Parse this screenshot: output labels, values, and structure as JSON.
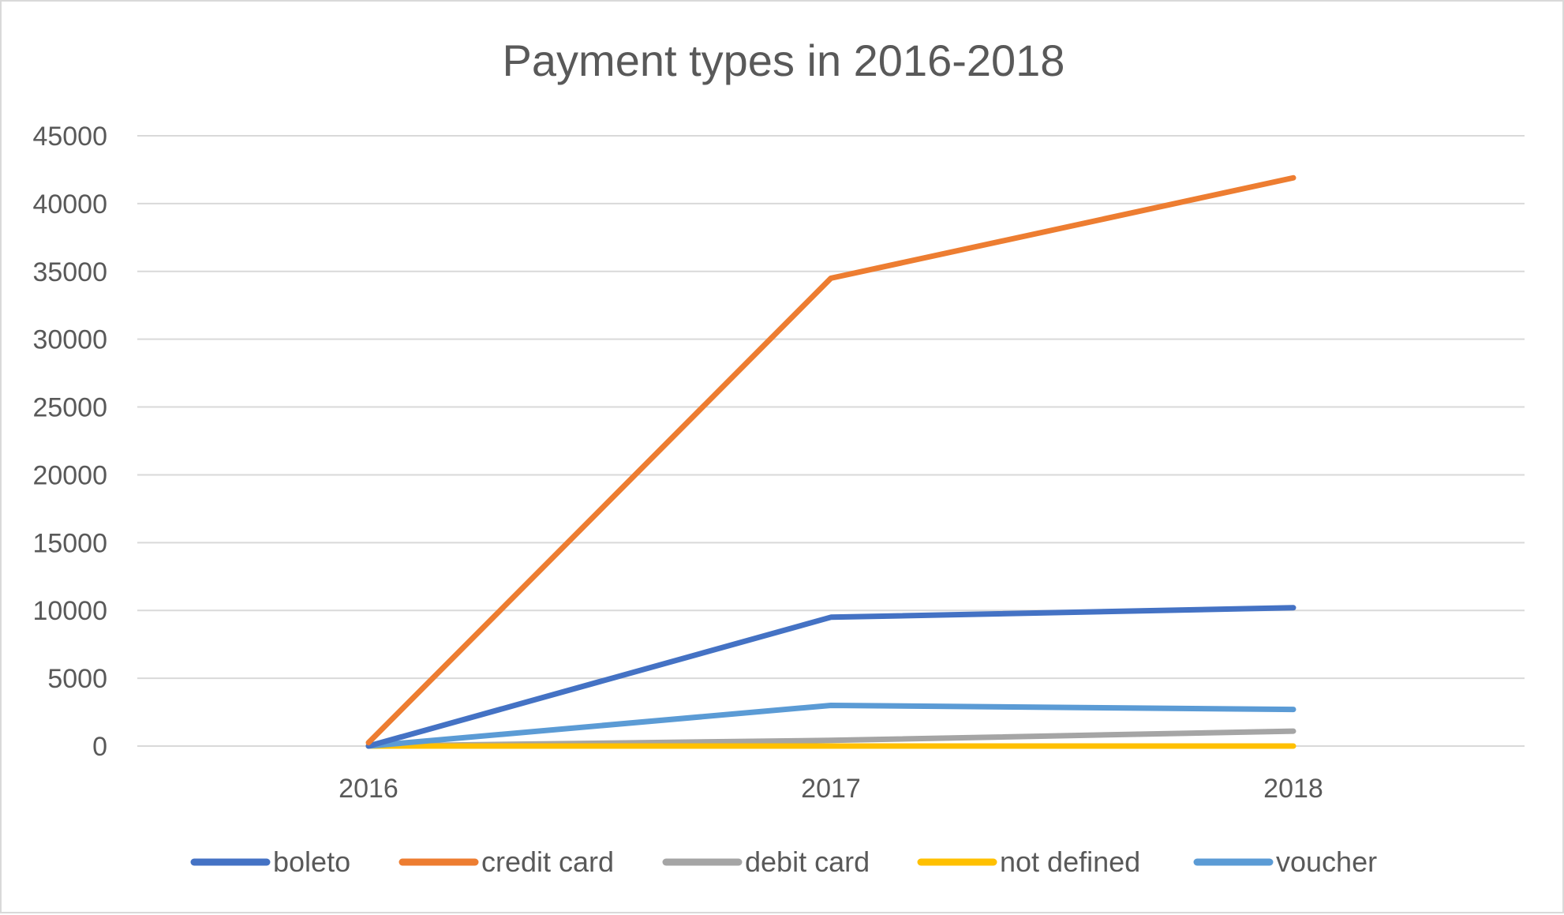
{
  "chart_data": {
    "type": "line",
    "title": "Payment types in 2016-2018",
    "xlabel": "",
    "ylabel": "",
    "categories": [
      "2016",
      "2017",
      "2018"
    ],
    "y_ticks": [
      "0",
      "5000",
      "10000",
      "15000",
      "20000",
      "25000",
      "30000",
      "35000",
      "40000",
      "45000"
    ],
    "ylim": [
      0,
      45000
    ],
    "grid": "horizontal",
    "legend_position": "bottom",
    "series": [
      {
        "name": "boleto",
        "color": "#4472c4",
        "values": [
          0,
          9500,
          10200
        ]
      },
      {
        "name": "credit card",
        "color": "#ed7d31",
        "values": [
          250,
          34500,
          41900
        ]
      },
      {
        "name": "debit card",
        "color": "#a5a5a5",
        "values": [
          0,
          420,
          1100
        ]
      },
      {
        "name": "not defined",
        "color": "#ffc000",
        "values": [
          0,
          0,
          0
        ]
      },
      {
        "name": "voucher",
        "color": "#5b9bd5",
        "values": [
          0,
          3000,
          2700
        ]
      }
    ]
  }
}
